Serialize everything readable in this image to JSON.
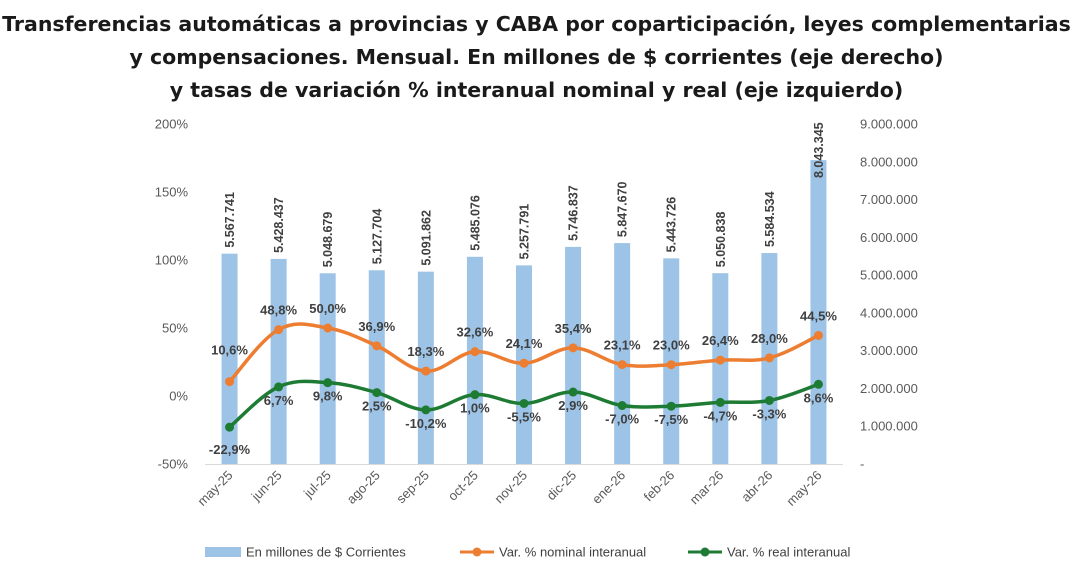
{
  "title_lines": [
    "Transferencias automáticas a provincias y CABA por coparticipación, leyes complementarias",
    "y compensaciones. Mensual. En millones de $ corrientes (eje derecho)",
    "y tasas de variación % interanual nominal y real (eje izquierdo)"
  ],
  "chart_data": {
    "type": "bar+line",
    "title": "Transferencias automáticas a provincias y CABA por coparticipación, leyes complementarias y compensaciones. Mensual. En millones de $ corrientes (eje derecho) y tasas de variación % interanual nominal y real (eje izquierdo)",
    "categories": [
      "may-25",
      "jun-25",
      "jul-25",
      "ago-25",
      "sep-25",
      "oct-25",
      "nov-25",
      "dic-25",
      "ene-26",
      "feb-26",
      "mar-26",
      "abr-26",
      "may-26"
    ],
    "bars": {
      "name": "En millones de $ Corrientes",
      "axis": "right",
      "color": "#9dc3e6",
      "values": [
        5567741,
        5428437,
        5048679,
        5127704,
        5091862,
        5485076,
        5257791,
        5746837,
        5847670,
        5443726,
        5050838,
        5584534,
        8043345
      ],
      "labels": [
        "5.567.741",
        "5.428.437",
        "5.048.679",
        "5.127.704",
        "5.091.862",
        "5.485.076",
        "5.257.791",
        "5.746.837",
        "5.847.670",
        "5.443.726",
        "5.050.838",
        "5.584.534",
        "8.043.345"
      ]
    },
    "series": [
      {
        "name": "Var. % nominal interanual",
        "axis": "left",
        "color": "#ed7d31",
        "values": [
          10.6,
          48.8,
          50.0,
          36.9,
          18.3,
          32.6,
          24.1,
          35.4,
          23.1,
          23.0,
          26.4,
          28.0,
          44.5
        ],
        "labels": [
          "10,6%",
          "48,8%",
          "50,0%",
          "36,9%",
          "18,3%",
          "32,6%",
          "24,1%",
          "35,4%",
          "23,1%",
          "23,0%",
          "26,4%",
          "28,0%",
          "44,5%"
        ]
      },
      {
        "name": "Var. % real interanual",
        "axis": "left",
        "color": "#1e7b34",
        "values": [
          -22.9,
          6.7,
          9.8,
          2.5,
          -10.2,
          1.0,
          -5.5,
          2.9,
          -7.0,
          -7.5,
          -4.7,
          -3.3,
          8.6
        ],
        "labels": [
          "-22,9%",
          "6,7%",
          "9,8%",
          "2,5%",
          "-10,2%",
          "1,0%",
          "-5,5%",
          "2,9%",
          "-7,0%",
          "-7,5%",
          "-4,7%",
          "-3,3%",
          "8,6%"
        ]
      }
    ],
    "left_axis": {
      "ylim": [
        -50,
        200
      ],
      "ticks": [
        "-50%",
        "0%",
        "50%",
        "100%",
        "150%",
        "200%"
      ]
    },
    "right_axis": {
      "ylim": [
        0,
        9000000
      ],
      "ticks": [
        "-",
        "1.000.000",
        "2.000.000",
        "3.000.000",
        "4.000.000",
        "5.000.000",
        "6.000.000",
        "7.000.000",
        "8.000.000",
        "9.000.000"
      ]
    },
    "grid": false,
    "legend_position": "bottom"
  }
}
